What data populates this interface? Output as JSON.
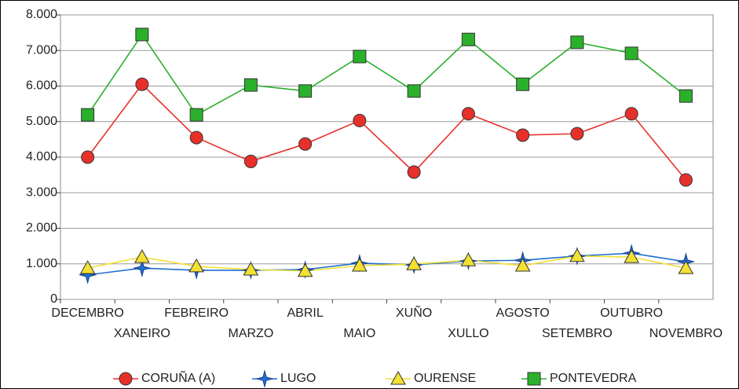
{
  "chart_data": {
    "type": "line",
    "categories": [
      "DECEMBRO",
      "XANEIRO",
      "FEBREIRO",
      "MARZO",
      "ABRIL",
      "MAIO",
      "XUÑO",
      "XULLO",
      "AGOSTO",
      "SETEMBRO",
      "OUTUBRO",
      "NOVEMBRO"
    ],
    "series": [
      {
        "name": "CORUÑA (A)",
        "color": "#e8302b",
        "marker": "circle",
        "values": [
          4000,
          6050,
          4550,
          3880,
          4370,
          5030,
          3580,
          5220,
          4620,
          4660,
          5220,
          3360
        ]
      },
      {
        "name": "LUGO",
        "color": "#1f6fd0",
        "marker": "star",
        "values": [
          690,
          880,
          820,
          820,
          840,
          1020,
          970,
          1080,
          1100,
          1220,
          1300,
          1060
        ]
      },
      {
        "name": "OURENSE",
        "color": "#f2e033",
        "marker": "triangle",
        "values": [
          880,
          1190,
          930,
          840,
          800,
          950,
          990,
          1100,
          950,
          1220,
          1190,
          880
        ]
      },
      {
        "name": "PONTEVEDRA",
        "color": "#2bb02b",
        "marker": "square",
        "values": [
          5190,
          7450,
          5190,
          6030,
          5860,
          6830,
          5860,
          7310,
          6050,
          7230,
          6920,
          5720
        ]
      }
    ],
    "ylim": [
      0,
      8000
    ],
    "yticks": [
      0,
      {
        "value": 1000,
        "label": "1.000"
      },
      {
        "value": 2000,
        "label": "2.000"
      },
      {
        "value": 3000,
        "label": "3.000"
      },
      {
        "value": 4000,
        "label": "4.000"
      },
      {
        "value": 5000,
        "label": "5.000"
      },
      {
        "value": 6000,
        "label": "6.000"
      },
      {
        "value": 7000,
        "label": "7.000"
      },
      {
        "value": 8000,
        "label": "8.000"
      }
    ],
    "grid": true,
    "legend": "bottom"
  }
}
